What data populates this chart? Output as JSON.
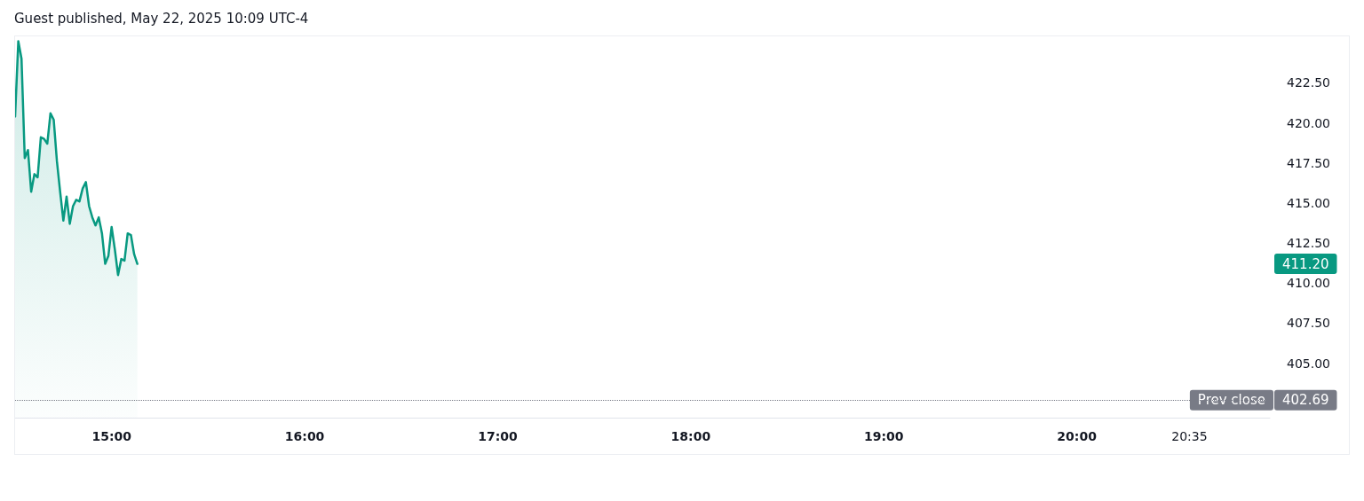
{
  "chart_data": {
    "type": "area",
    "title": "Guest published, May 22, 2025 10:09 UTC-4",
    "x": [
      14.5,
      14.5167,
      14.5333,
      14.55,
      14.5667,
      14.5833,
      14.6,
      14.6167,
      14.6333,
      14.65,
      14.6667,
      14.6833,
      14.7,
      14.7167,
      14.7333,
      14.75,
      14.7667,
      14.7833,
      14.8,
      14.8167,
      14.8333,
      14.85,
      14.8667,
      14.8833,
      14.9,
      14.9167,
      14.9333,
      14.95,
      14.9667,
      14.9833,
      15,
      15.0167,
      15.0333,
      15.05,
      15.0667,
      15.0833,
      15.1,
      15.1167,
      15.1333
    ],
    "values": [
      420.4,
      425.1,
      424.0,
      417.8,
      418.3,
      415.7,
      416.8,
      416.6,
      419.1,
      419.0,
      418.7,
      420.6,
      420.2,
      417.6,
      415.7,
      413.9,
      415.4,
      413.7,
      414.8,
      415.2,
      415.1,
      415.9,
      416.3,
      414.8,
      414.1,
      413.6,
      414.1,
      413.1,
      411.2,
      411.7,
      413.5,
      412.1,
      410.5,
      411.5,
      411.4,
      413.1,
      413.0,
      411.8,
      411.2
    ],
    "color": "#089981",
    "marker": "none",
    "line_style": "solid",
    "xlim": [
      14.5,
      21.0
    ],
    "xticks": [
      {
        "value": 15,
        "label": "15:00"
      },
      {
        "value": 16,
        "label": "16:00"
      },
      {
        "value": 17,
        "label": "17:00"
      },
      {
        "value": 18,
        "label": "18:00"
      },
      {
        "value": 19,
        "label": "19:00"
      },
      {
        "value": 20,
        "label": "20:00"
      },
      {
        "value": 20.5833,
        "label": "20:35"
      }
    ],
    "ylim": [
      401.6,
      425.4
    ],
    "yticks": [
      {
        "value": 402.69,
        "label": "402.69"
      },
      {
        "value": 405,
        "label": "405.00"
      },
      {
        "value": 407.5,
        "label": "407.50"
      },
      {
        "value": 410,
        "label": "410.00"
      },
      {
        "value": 412.5,
        "label": "412.50"
      },
      {
        "value": 415,
        "label": "415.00"
      },
      {
        "value": 417.5,
        "label": "417.50"
      },
      {
        "value": 420,
        "label": "420.00"
      },
      {
        "value": 422.5,
        "label": "422.50"
      }
    ],
    "ref_lines": [
      {
        "axis": "y",
        "value": 402.69,
        "label": "Prev close",
        "color": "#787b86",
        "line_style": "dotted"
      }
    ],
    "annotations": [
      "411.20"
    ]
  }
}
